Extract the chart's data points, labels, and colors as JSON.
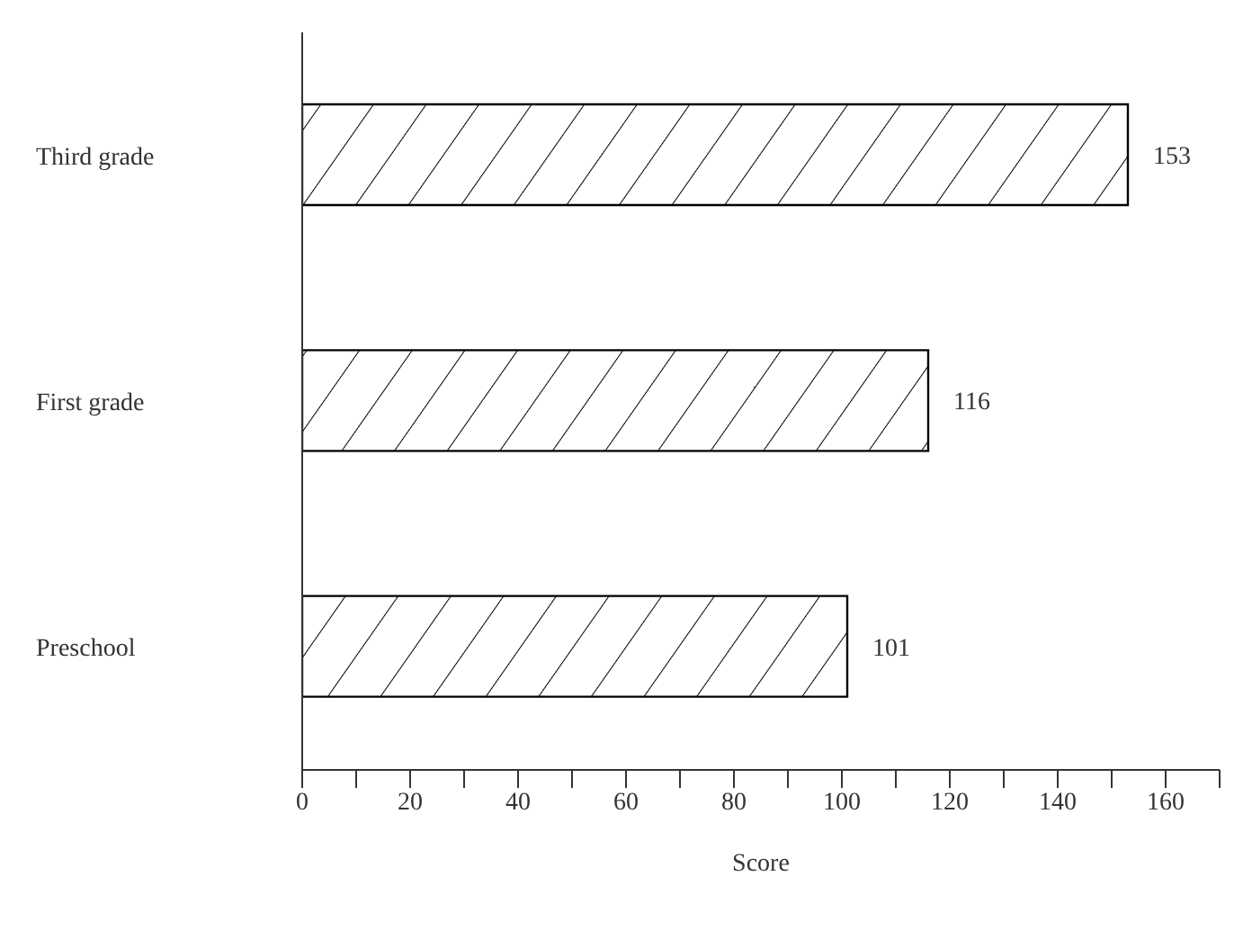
{
  "chart_data": {
    "type": "bar",
    "orientation": "horizontal",
    "xlabel": "Score",
    "categories": [
      "Third grade",
      "First grade",
      "Preschool"
    ],
    "values": [
      153,
      116,
      101
    ],
    "color": "#000000",
    "data_labels": true,
    "grid": false,
    "legend": false,
    "xlim": [
      0,
      170
    ],
    "xticks": [
      0,
      {
        "value": 10,
        "label": null
      },
      20,
      {
        "value": 30,
        "label": null
      },
      40,
      {
        "value": 50,
        "label": null
      },
      60,
      {
        "value": 70,
        "label": null
      },
      80,
      {
        "value": 90,
        "label": null
      },
      100,
      {
        "value": 110,
        "label": null
      },
      120,
      {
        "value": 130,
        "label": null
      },
      140,
      {
        "value": 150,
        "label": null
      },
      160,
      {
        "value": 170,
        "label": null
      }
    ]
  }
}
